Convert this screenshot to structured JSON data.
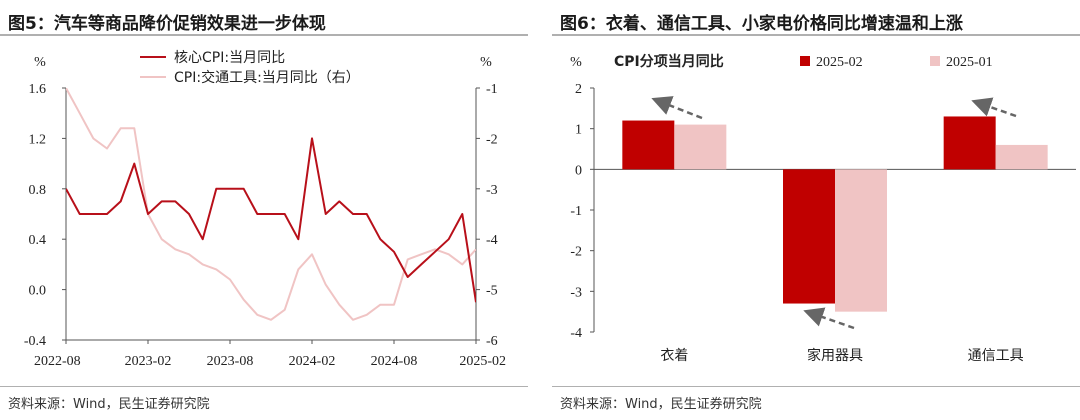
{
  "left_panel": {
    "title": "图5：汽车等商品降价促销效果进一步体现",
    "source": "资料来源：Wind，民生证券研究院"
  },
  "right_panel": {
    "title": "图6：衣着、通信工具、小家电价格同比增速温和上涨",
    "source": "资料来源：Wind，民生证券研究院"
  },
  "chart_data": [
    {
      "type": "line",
      "title": "",
      "y_unit_left": "%",
      "y_unit_right": "%",
      "ylim_left": [
        -0.4,
        1.6
      ],
      "yticks_left": [
        "1.6",
        "1.2",
        "0.8",
        "0.4",
        "0.0",
        "-0.4"
      ],
      "ylim_right": [
        -6,
        -1
      ],
      "yticks_right": [
        "-1",
        "-2",
        "-3",
        "-4",
        "-5",
        "-6"
      ],
      "x_tick_labels": [
        "2022-08",
        "2023-02",
        "2023-08",
        "2024-02",
        "2024-08",
        "2025-02"
      ],
      "legend_position": "top-center",
      "series": [
        {
          "name": "核心CPI:当月同比",
          "axis": "left",
          "color": "#b8101a",
          "x": [
            "2022-08",
            "2022-09",
            "2022-10",
            "2022-11",
            "2022-12",
            "2023-01",
            "2023-02",
            "2023-03",
            "2023-04",
            "2023-05",
            "2023-06",
            "2023-07",
            "2023-08",
            "2023-09",
            "2023-10",
            "2023-11",
            "2023-12",
            "2024-01",
            "2024-02",
            "2024-03",
            "2024-04",
            "2024-05",
            "2024-06",
            "2024-07",
            "2024-08",
            "2024-09",
            "2024-10",
            "2024-11",
            "2024-12",
            "2025-01",
            "2025-02"
          ],
          "values": [
            0.8,
            0.6,
            0.6,
            0.6,
            0.7,
            1.0,
            0.6,
            0.7,
            0.7,
            0.6,
            0.4,
            0.8,
            0.8,
            0.8,
            0.6,
            0.6,
            0.6,
            0.4,
            1.2,
            0.6,
            0.7,
            0.6,
            0.6,
            0.4,
            0.3,
            0.1,
            0.2,
            0.3,
            0.4,
            0.6,
            -0.1
          ]
        },
        {
          "name": "CPI:交通工具:当月同比（右）",
          "axis": "right",
          "color": "#f0c4c4",
          "x": [
            "2022-08",
            "2022-09",
            "2022-10",
            "2022-11",
            "2022-12",
            "2023-01",
            "2023-02",
            "2023-03",
            "2023-04",
            "2023-05",
            "2023-06",
            "2023-07",
            "2023-08",
            "2023-09",
            "2023-10",
            "2023-11",
            "2023-12",
            "2024-01",
            "2024-02",
            "2024-03",
            "2024-04",
            "2024-05",
            "2024-06",
            "2024-07",
            "2024-08",
            "2024-09",
            "2024-10",
            "2024-11",
            "2024-12",
            "2025-01",
            "2025-02"
          ],
          "values": [
            -1.0,
            -1.5,
            -2.0,
            -2.2,
            -1.8,
            -1.8,
            -3.5,
            -4.0,
            -4.2,
            -4.3,
            -4.5,
            -4.6,
            -4.8,
            -5.2,
            -5.5,
            -5.6,
            -5.4,
            -4.6,
            -4.3,
            -4.9,
            -5.3,
            -5.6,
            -5.5,
            -5.3,
            -5.3,
            -4.4,
            -4.3,
            -4.2,
            -4.3,
            -4.5,
            -4.2
          ]
        }
      ]
    },
    {
      "type": "bar",
      "title": "",
      "y_unit": "%",
      "ylim": [
        -4,
        2
      ],
      "yticks": [
        "2",
        "1",
        "0",
        "-1",
        "-2",
        "-3",
        "-4"
      ],
      "legend_title": "CPI分项当月同比",
      "legend_position": "top",
      "categories": [
        "衣着",
        "家用器具",
        "通信工具"
      ],
      "series": [
        {
          "name": "2025-02",
          "color": "#c00000",
          "values": [
            1.2,
            -3.3,
            1.3
          ]
        },
        {
          "name": "2025-01",
          "color": "#f0c4c4",
          "values": [
            1.1,
            -3.5,
            0.6
          ]
        }
      ]
    }
  ]
}
